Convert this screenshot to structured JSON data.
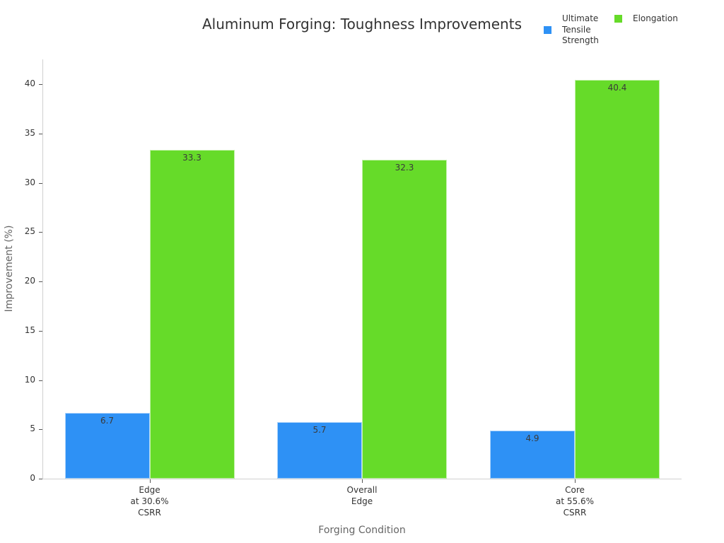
{
  "chart_data": {
    "type": "bar",
    "title": "Aluminum Forging: Toughness Improvements",
    "xlabel": "Forging Condition",
    "ylabel": "Improvement (%)",
    "categories": [
      "Edge\nat 30.6%\nCSRR",
      "Overall\nEdge",
      "Core\nat 55.6%\nCSRR"
    ],
    "category_lines": [
      [
        "Edge",
        "at 30.6%",
        "CSRR"
      ],
      [
        "Overall",
        "Edge"
      ],
      [
        "Core",
        "at 55.6%",
        "CSRR"
      ]
    ],
    "series": [
      {
        "name": "Ultimate Tensile Strength",
        "legend_lines": [
          "Ultimate",
          "Tensile",
          "Strength"
        ],
        "color": "#2e91f5",
        "values": [
          6.7,
          5.7,
          4.9
        ],
        "labels": [
          "6.7",
          "5.7",
          "4.9"
        ]
      },
      {
        "name": "Elongation",
        "color": "#66db29",
        "values": [
          33.3,
          32.3,
          40.4
        ],
        "labels": [
          "33.3",
          "32.3",
          "40.4"
        ]
      }
    ],
    "ylim": [
      0,
      42.5
    ],
    "yticks": [
      0,
      5,
      10,
      15,
      20,
      25,
      30,
      35,
      40
    ],
    "ytick_labels": [
      "0",
      "5",
      "10",
      "15",
      "20",
      "25",
      "30",
      "35",
      "40"
    ],
    "grid": false,
    "legend_position": "top-right"
  }
}
